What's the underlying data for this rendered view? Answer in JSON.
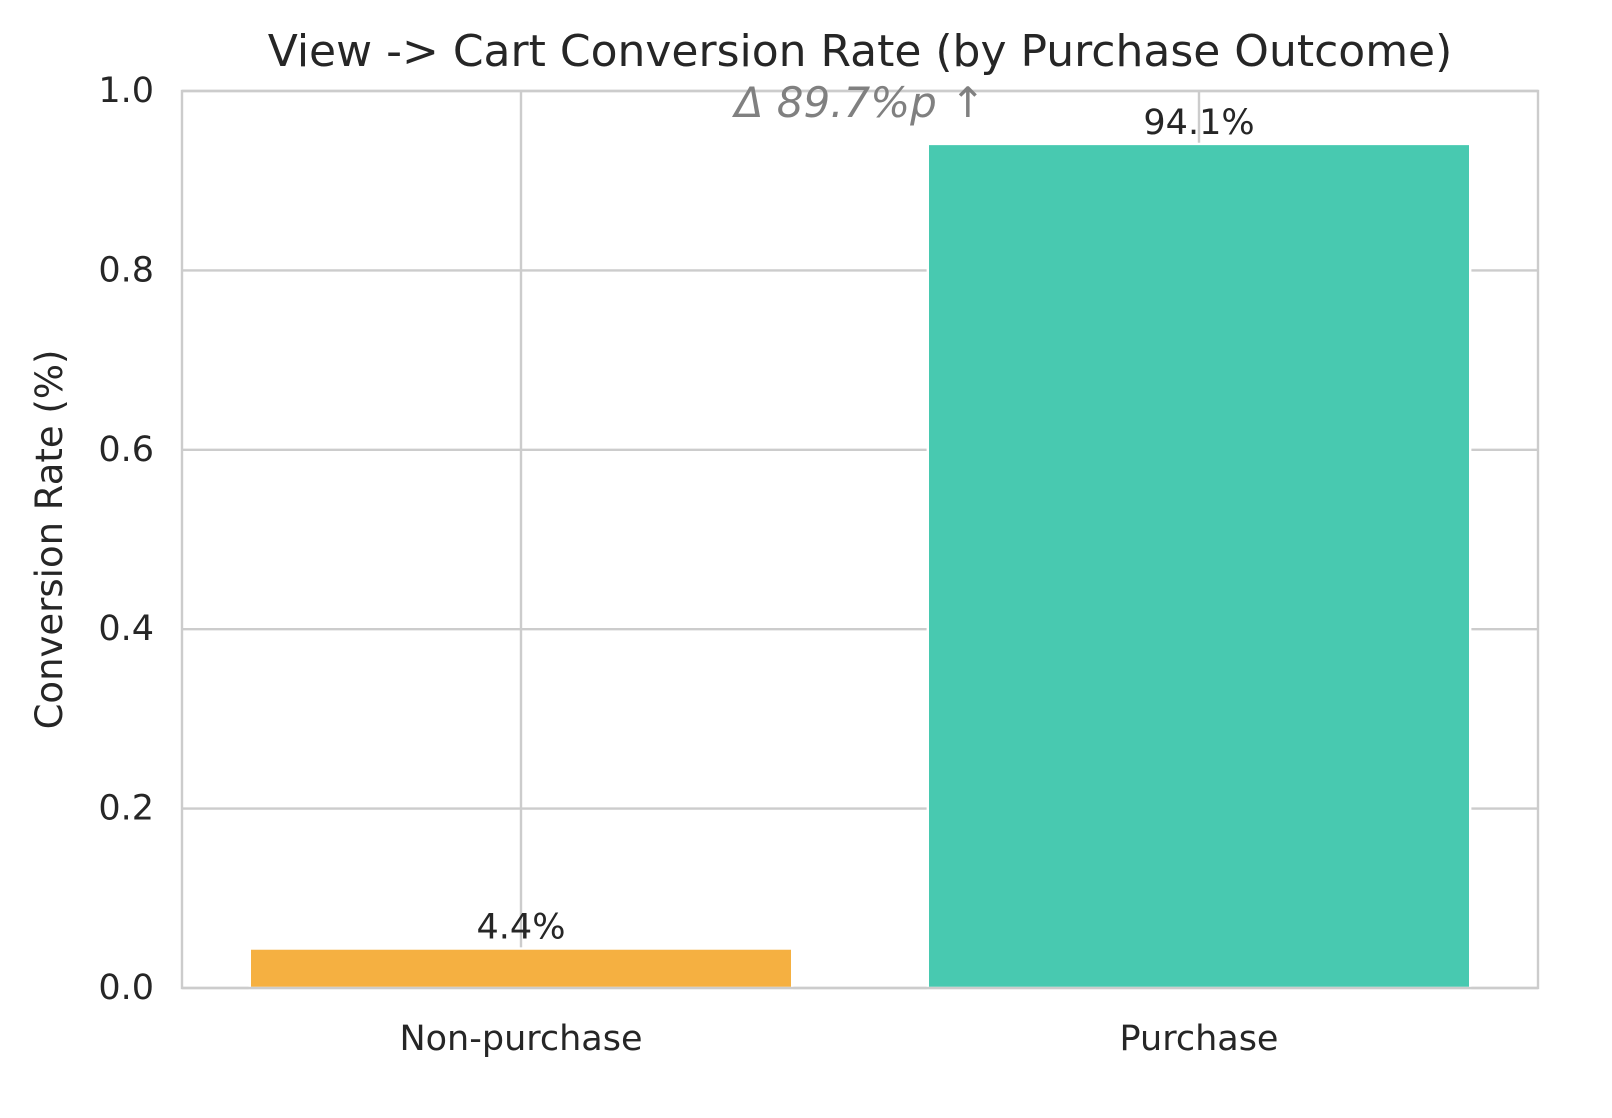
{
  "chart_data": {
    "type": "bar",
    "title": "View -> Cart Conversion Rate (by Purchase Outcome)",
    "xlabel": "",
    "ylabel": "Conversion Rate (%)",
    "categories": [
      "Non-purchase",
      "Purchase"
    ],
    "values": [
      0.044,
      0.941
    ],
    "bar_labels": [
      "4.4%",
      "94.1%"
    ],
    "bar_colors": [
      "#f5b041",
      "#48c9b0"
    ],
    "ylim": [
      0.0,
      1.0
    ],
    "yticks": [
      0.0,
      0.2,
      0.4,
      0.6,
      0.8,
      1.0
    ],
    "ytick_labels": [
      "0.0",
      "0.2",
      "0.4",
      "0.6",
      "0.8",
      "1.0"
    ],
    "annotation": "Δ 89.7%p ↑",
    "grid": true,
    "legend": "none",
    "colors": {
      "grid": "#cccccc",
      "text": "#262626",
      "annotation": "#808080",
      "background": "#ffffff"
    }
  }
}
